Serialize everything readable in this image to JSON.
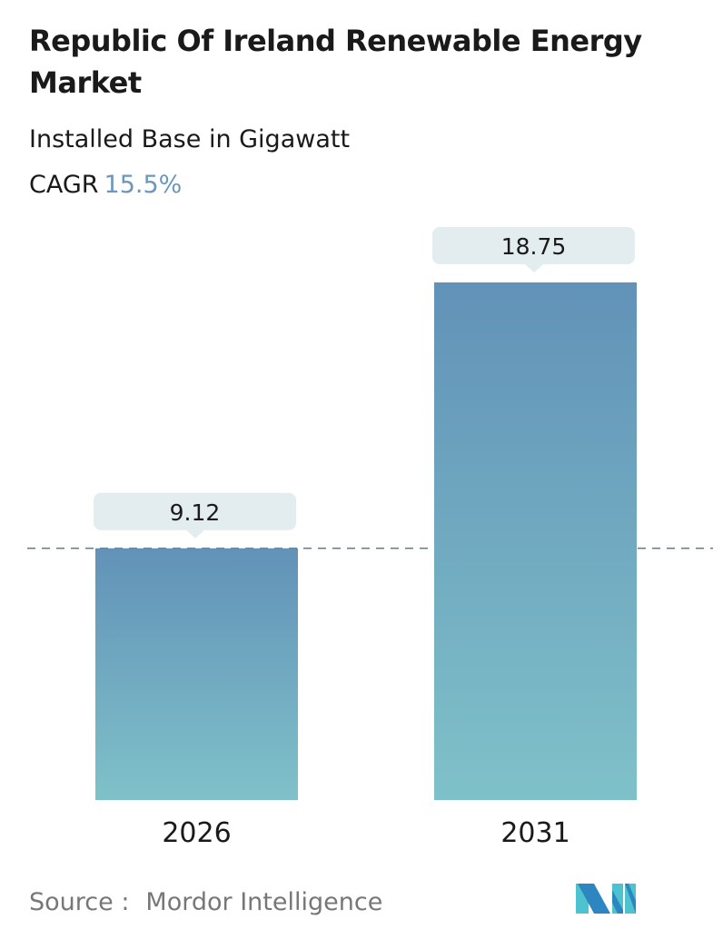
{
  "title": "Republic Of Ireland Renewable Energy Market",
  "subtitle": "Installed Base in Gigawatt",
  "cagr_label": "CAGR",
  "cagr_value": "15.5%",
  "source_label": "Source :",
  "source_value": "Mordor Intelligence",
  "logo_text": "Mordor Intelligence",
  "colors": {
    "bar_top": "#6292b8",
    "bar_bottom": "#7fc1c9",
    "callout": "#e3ecef",
    "dashed_line": "#5a7f9c",
    "accent": "#6b97bd"
  },
  "chart_data": {
    "type": "bar",
    "categories": [
      "2026",
      "2031"
    ],
    "values": [
      9.12,
      18.75
    ],
    "data_labels": [
      "9.12",
      "18.75"
    ],
    "ylim": [
      0,
      18.75
    ],
    "grid": false,
    "reference_line": {
      "value": 9.12,
      "style": "dashed"
    }
  }
}
